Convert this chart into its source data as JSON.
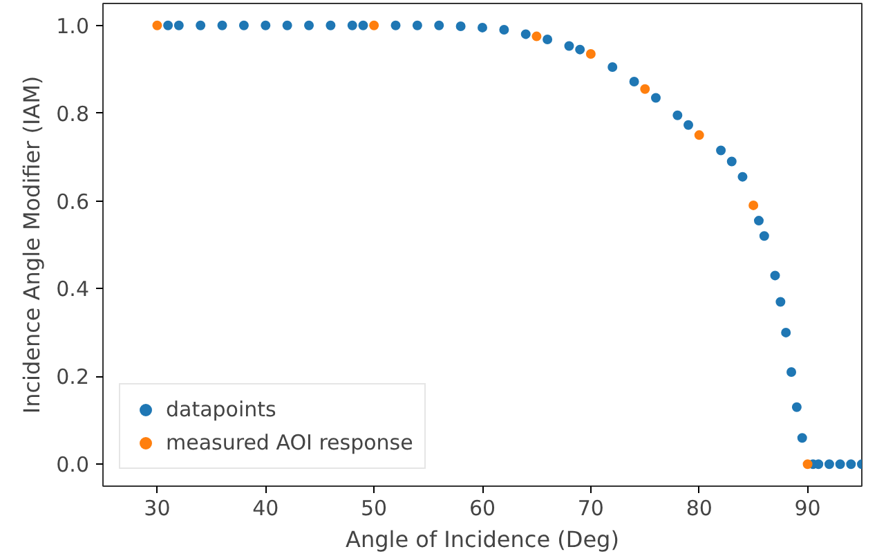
{
  "chart_data": {
    "type": "scatter",
    "xlabel": "Angle of Incidence (Deg)",
    "ylabel": "Incidence Angle Modifier (IAM)",
    "xlim": [
      25,
      95
    ],
    "ylim": [
      -0.05,
      1.05
    ],
    "xticks": [
      30,
      40,
      50,
      60,
      70,
      80,
      90
    ],
    "yticks": [
      {
        "value": 0,
        "label": "0.0"
      },
      {
        "value": 0.2,
        "label": "0.2"
      },
      {
        "value": 0.4,
        "label": "0.4"
      },
      {
        "value": 0.6,
        "label": "0.6"
      },
      {
        "value": 0.8,
        "label": "0.8"
      },
      {
        "value": 1,
        "label": "1.0"
      }
    ],
    "grid": false,
    "legend": "bottom left",
    "marker": "circle",
    "series": [
      {
        "name": "datapoints",
        "color": "#1f77b4",
        "x": [
          31,
          32,
          34,
          36,
          38,
          40,
          42,
          44,
          46,
          48,
          49,
          52,
          54,
          56,
          58,
          60,
          62,
          64,
          66,
          68,
          69,
          72,
          74,
          76,
          78,
          79,
          82,
          83,
          84,
          85.5,
          86,
          87,
          87.5,
          88,
          88.5,
          89,
          89.5,
          90.5,
          91,
          92,
          93,
          94,
          95
        ],
        "values": [
          1,
          1,
          1,
          1,
          1,
          1,
          1,
          1,
          1,
          1,
          1,
          1,
          1,
          1,
          0.998,
          0.995,
          0.99,
          0.98,
          0.968,
          0.953,
          0.945,
          0.905,
          0.872,
          0.835,
          0.795,
          0.773,
          0.715,
          0.69,
          0.655,
          0.555,
          0.52,
          0.43,
          0.37,
          0.3,
          0.21,
          0.13,
          0.06,
          0,
          0,
          0,
          0,
          0,
          0
        ]
      },
      {
        "name": "measured AOI response",
        "color": "#ff7f0e",
        "x": [
          30,
          50,
          65,
          70,
          75,
          80,
          85,
          90
        ],
        "values": [
          1,
          1,
          0.975,
          0.935,
          0.855,
          0.75,
          0.59,
          0
        ]
      }
    ]
  }
}
